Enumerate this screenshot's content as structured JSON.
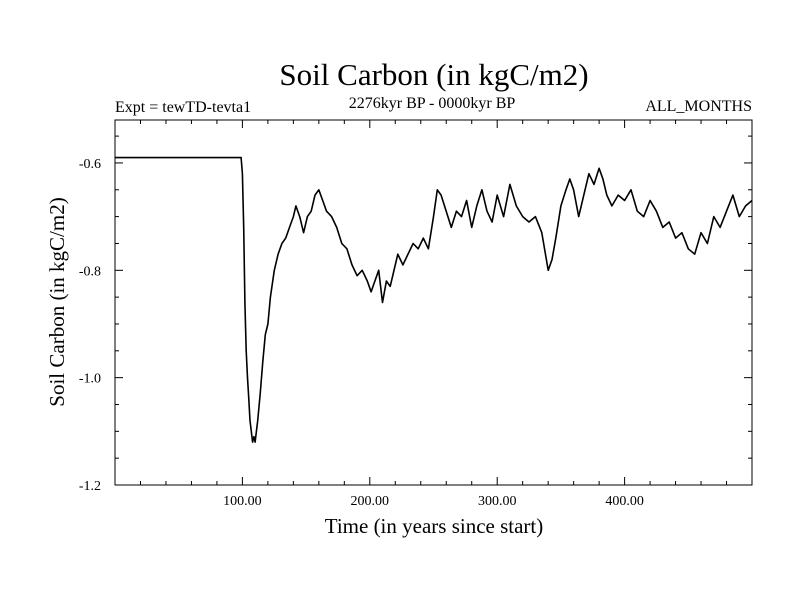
{
  "chart_data": {
    "type": "line",
    "title": "Soil Carbon (in kgC/m2)",
    "subtitle_left": "Expt = tewTD-tevta1",
    "subtitle_center": "2276kyr BP - 0000kyr BP",
    "subtitle_right": "ALL_MONTHS",
    "xlabel": "Time (in years since start)",
    "ylabel": "Soil Carbon (in kgC/m2)",
    "xlim": [
      0,
      500
    ],
    "ylim": [
      -1.2,
      -0.52
    ],
    "x_ticks": [
      {
        "value": 100,
        "label": "100.00"
      },
      {
        "value": 200,
        "label": "200.00"
      },
      {
        "value": 300,
        "label": "300.00"
      },
      {
        "value": 400,
        "label": "400.00"
      }
    ],
    "y_ticks": [
      {
        "value": -0.6,
        "label": "-0.6"
      },
      {
        "value": -0.8,
        "label": "-0.8"
      },
      {
        "value": -1.0,
        "label": "-1.0"
      },
      {
        "value": -1.2,
        "label": "-1.2"
      }
    ],
    "grid": false,
    "series": [
      {
        "name": "Soil Carbon",
        "x": [
          0,
          99,
          100,
          101,
          102,
          103,
          104,
          105,
          106,
          107,
          108,
          109,
          110,
          112,
          114,
          116,
          118,
          120,
          122,
          125,
          128,
          131,
          134,
          137,
          140,
          142,
          145,
          148,
          151,
          154,
          157,
          160,
          163,
          166,
          170,
          174,
          178,
          182,
          186,
          190,
          194,
          198,
          201,
          204,
          207,
          210,
          213,
          216,
          219,
          222,
          226,
          230,
          234,
          238,
          242,
          246,
          250,
          253,
          256,
          260,
          264,
          268,
          272,
          276,
          280,
          284,
          288,
          292,
          296,
          300,
          305,
          310,
          315,
          320,
          325,
          330,
          335,
          340,
          343,
          346,
          350,
          354,
          357,
          360,
          364,
          368,
          372,
          376,
          380,
          383,
          386,
          390,
          395,
          400,
          405,
          410,
          415,
          420,
          425,
          430,
          435,
          440,
          445,
          450,
          455,
          460,
          465,
          470,
          475,
          480,
          485,
          490,
          495,
          500
        ],
        "values": [
          -0.59,
          -0.59,
          -0.62,
          -0.72,
          -0.86,
          -0.95,
          -1.0,
          -1.04,
          -1.08,
          -1.1,
          -1.12,
          -1.11,
          -1.12,
          -1.08,
          -1.03,
          -0.97,
          -0.92,
          -0.9,
          -0.85,
          -0.8,
          -0.77,
          -0.75,
          -0.74,
          -0.72,
          -0.7,
          -0.68,
          -0.7,
          -0.73,
          -0.7,
          -0.69,
          -0.66,
          -0.65,
          -0.67,
          -0.69,
          -0.7,
          -0.72,
          -0.75,
          -0.76,
          -0.79,
          -0.81,
          -0.8,
          -0.82,
          -0.84,
          -0.82,
          -0.8,
          -0.86,
          -0.82,
          -0.83,
          -0.8,
          -0.77,
          -0.79,
          -0.77,
          -0.75,
          -0.76,
          -0.74,
          -0.76,
          -0.7,
          -0.65,
          -0.66,
          -0.69,
          -0.72,
          -0.69,
          -0.7,
          -0.67,
          -0.72,
          -0.68,
          -0.65,
          -0.69,
          -0.71,
          -0.66,
          -0.7,
          -0.64,
          -0.68,
          -0.7,
          -0.71,
          -0.7,
          -0.73,
          -0.8,
          -0.78,
          -0.74,
          -0.68,
          -0.65,
          -0.63,
          -0.65,
          -0.7,
          -0.66,
          -0.62,
          -0.64,
          -0.61,
          -0.63,
          -0.66,
          -0.68,
          -0.66,
          -0.67,
          -0.65,
          -0.69,
          -0.7,
          -0.67,
          -0.69,
          -0.72,
          -0.71,
          -0.74,
          -0.73,
          -0.76,
          -0.77,
          -0.73,
          -0.75,
          -0.7,
          -0.72,
          -0.69,
          -0.66,
          -0.7,
          -0.68,
          -0.67
        ]
      }
    ]
  }
}
